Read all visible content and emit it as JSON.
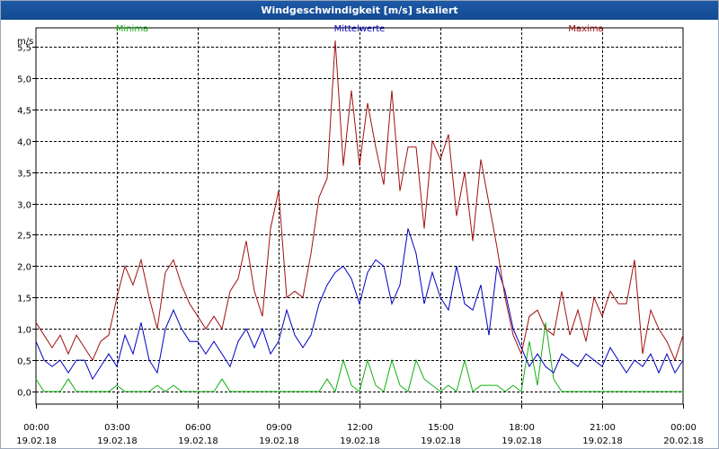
{
  "title": "Windgeschwindigkeit [m/s] skaliert",
  "colors": {
    "title_bg": "#1a55a0",
    "minima": "#12b012",
    "mittel": "#0000c0",
    "maxima": "#a01010",
    "grid": "#000000"
  },
  "chart_data": {
    "type": "line",
    "title": "Windgeschwindigkeit [m/s] skaliert",
    "ylabel": "m/s",
    "ylim": [
      -0.2,
      5.8
    ],
    "xlim": [
      0,
      24
    ],
    "y_ticks": [
      0.0,
      0.5,
      1.0,
      1.5,
      2.0,
      2.5,
      3.0,
      3.5,
      4.0,
      4.5,
      5.0,
      5.5
    ],
    "y_tick_labels": [
      "0,0",
      "0,5",
      "1,0",
      "1,5",
      "2,0",
      "2,5",
      "3,0",
      "3,5",
      "4,0",
      "4,5",
      "5,0",
      "5,5"
    ],
    "x_ticks": [
      0,
      3,
      6,
      9,
      12,
      15,
      18,
      21,
      24
    ],
    "x_tick_times": [
      "00:00",
      "03:00",
      "06:00",
      "09:00",
      "12:00",
      "15:00",
      "18:00",
      "21:00",
      "00:00"
    ],
    "x_tick_dates": [
      "19.02.18",
      "19.02.18",
      "19.02.18",
      "19.02.18",
      "19.02.18",
      "19.02.18",
      "19.02.18",
      "19.02.18",
      "20.02.18"
    ],
    "grid": true,
    "legend": [
      "Minima",
      "Mittelwerte",
      "Maxima"
    ],
    "series": [
      {
        "name": "Minima",
        "x": [
          0,
          0.3,
          0.6,
          0.9,
          1.2,
          1.5,
          1.8,
          2.1,
          2.4,
          2.7,
          3.0,
          3.3,
          3.6,
          3.9,
          4.2,
          4.5,
          4.8,
          5.1,
          5.4,
          5.7,
          6.0,
          6.3,
          6.6,
          6.9,
          7.2,
          7.5,
          7.8,
          8.1,
          8.4,
          8.7,
          9.0,
          9.3,
          9.6,
          9.9,
          10.2,
          10.5,
          10.8,
          11.1,
          11.4,
          11.7,
          12.0,
          12.3,
          12.6,
          12.9,
          13.2,
          13.5,
          13.8,
          14.1,
          14.4,
          14.7,
          15.0,
          15.3,
          15.6,
          15.9,
          16.2,
          16.5,
          16.8,
          17.1,
          17.4,
          17.7,
          18.0,
          18.3,
          18.6,
          18.9,
          19.2,
          19.5,
          19.8,
          20.1,
          20.4,
          20.7,
          21.0,
          21.3,
          21.6,
          21.9,
          22.2,
          22.5,
          22.8,
          23.1,
          23.4,
          23.7,
          24.0
        ],
        "values": [
          0.2,
          0,
          0,
          0,
          0.2,
          0,
          0,
          0,
          0,
          0,
          0.1,
          0,
          0,
          0,
          0,
          0.1,
          0,
          0.1,
          0,
          0,
          0,
          0,
          0,
          0.2,
          0,
          0,
          0,
          0,
          0,
          0,
          0,
          0,
          0,
          0,
          0,
          0,
          0.2,
          0,
          0.5,
          0.1,
          0,
          0.5,
          0.1,
          0,
          0.5,
          0.1,
          0,
          0.5,
          0.2,
          0.1,
          0,
          0.1,
          0,
          0.5,
          0,
          0.1,
          0.1,
          0.1,
          0,
          0.1,
          0,
          0.8,
          0.1,
          1.1,
          0.2,
          0,
          0,
          0,
          0,
          0,
          0,
          0,
          0,
          0,
          0,
          0,
          0,
          0,
          0,
          0,
          0
        ]
      },
      {
        "name": "Mittelwerte",
        "x": [
          0,
          0.3,
          0.6,
          0.9,
          1.2,
          1.5,
          1.8,
          2.1,
          2.4,
          2.7,
          3.0,
          3.3,
          3.6,
          3.9,
          4.2,
          4.5,
          4.8,
          5.1,
          5.4,
          5.7,
          6.0,
          6.3,
          6.6,
          6.9,
          7.2,
          7.5,
          7.8,
          8.1,
          8.4,
          8.7,
          9.0,
          9.3,
          9.6,
          9.9,
          10.2,
          10.5,
          10.8,
          11.1,
          11.4,
          11.7,
          12.0,
          12.3,
          12.6,
          12.9,
          13.2,
          13.5,
          13.8,
          14.1,
          14.4,
          14.7,
          15.0,
          15.3,
          15.6,
          15.9,
          16.2,
          16.5,
          16.8,
          17.1,
          17.4,
          17.7,
          18.0,
          18.3,
          18.6,
          18.9,
          19.2,
          19.5,
          19.8,
          20.1,
          20.4,
          20.7,
          21.0,
          21.3,
          21.6,
          21.9,
          22.2,
          22.5,
          22.8,
          23.1,
          23.4,
          23.7,
          24.0
        ],
        "values": [
          0.8,
          0.5,
          0.4,
          0.5,
          0.3,
          0.5,
          0.5,
          0.2,
          0.4,
          0.6,
          0.4,
          0.9,
          0.6,
          1.1,
          0.5,
          0.3,
          1.0,
          1.3,
          1.0,
          0.8,
          0.8,
          0.6,
          0.8,
          0.6,
          0.4,
          0.8,
          1.0,
          0.7,
          1.0,
          0.6,
          0.8,
          1.3,
          0.9,
          0.7,
          0.9,
          1.4,
          1.7,
          1.9,
          2.0,
          1.8,
          1.4,
          1.9,
          2.1,
          2.0,
          1.4,
          1.7,
          2.6,
          2.2,
          1.4,
          1.9,
          1.5,
          1.3,
          2.0,
          1.4,
          1.3,
          1.7,
          0.9,
          2.0,
          1.6,
          1.0,
          0.7,
          0.4,
          0.6,
          0.4,
          0.3,
          0.6,
          0.5,
          0.4,
          0.6,
          0.5,
          0.4,
          0.7,
          0.5,
          0.3,
          0.5,
          0.4,
          0.6,
          0.3,
          0.6,
          0.3,
          0.5
        ]
      },
      {
        "name": "Maxima",
        "x": [
          0,
          0.3,
          0.6,
          0.9,
          1.2,
          1.5,
          1.8,
          2.1,
          2.4,
          2.7,
          3.0,
          3.3,
          3.6,
          3.9,
          4.2,
          4.5,
          4.8,
          5.1,
          5.4,
          5.7,
          6.0,
          6.3,
          6.6,
          6.9,
          7.2,
          7.5,
          7.8,
          8.1,
          8.4,
          8.7,
          9.0,
          9.3,
          9.6,
          9.9,
          10.2,
          10.5,
          10.8,
          11.1,
          11.4,
          11.7,
          12.0,
          12.3,
          12.6,
          12.9,
          13.2,
          13.5,
          13.8,
          14.1,
          14.4,
          14.7,
          15.0,
          15.3,
          15.6,
          15.9,
          16.2,
          16.5,
          16.8,
          17.1,
          17.4,
          17.7,
          18.0,
          18.3,
          18.6,
          18.9,
          19.2,
          19.5,
          19.8,
          20.1,
          20.4,
          20.7,
          21.0,
          21.3,
          21.6,
          21.9,
          22.2,
          22.5,
          22.8,
          23.1,
          23.4,
          23.7,
          24.0
        ],
        "values": [
          1.1,
          0.9,
          0.7,
          0.9,
          0.6,
          0.9,
          0.7,
          0.5,
          0.8,
          0.9,
          1.5,
          2.0,
          1.7,
          2.1,
          1.5,
          1.0,
          1.9,
          2.1,
          1.7,
          1.4,
          1.2,
          1.0,
          1.2,
          1.0,
          1.6,
          1.8,
          2.4,
          1.6,
          1.2,
          2.6,
          3.2,
          1.5,
          1.6,
          1.5,
          2.2,
          3.1,
          3.4,
          5.6,
          3.6,
          4.8,
          3.6,
          4.6,
          3.9,
          3.3,
          4.8,
          3.2,
          3.9,
          3.9,
          2.6,
          4.0,
          3.7,
          4.1,
          2.8,
          3.5,
          2.4,
          3.7,
          3.0,
          2.3,
          1.5,
          0.9,
          0.6,
          1.2,
          1.3,
          1.0,
          0.9,
          1.6,
          0.9,
          1.3,
          0.8,
          1.5,
          1.2,
          1.6,
          1.4,
          1.4,
          2.1,
          0.6,
          1.3,
          1.0,
          0.8,
          0.5,
          0.9
        ]
      }
    ]
  }
}
